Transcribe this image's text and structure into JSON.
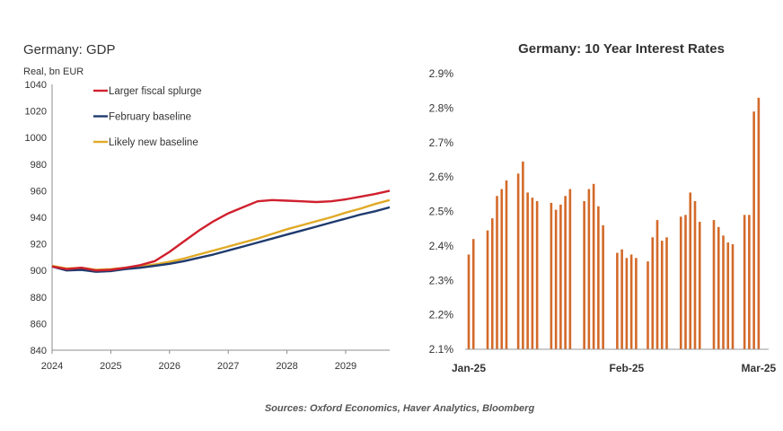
{
  "chart_data": [
    {
      "type": "line",
      "title": "Germany: GDP",
      "ylabel": "Real, bn EUR",
      "xlabel": "",
      "ylim": [
        840,
        1040
      ],
      "yticks": [
        840,
        860,
        880,
        900,
        920,
        940,
        960,
        980,
        1000,
        1020,
        1040
      ],
      "xlim": [
        2024,
        2029.75
      ],
      "xticks": [
        "2024",
        "2025",
        "2026",
        "2027",
        "2028",
        "2029"
      ],
      "legend_position": "top-left",
      "grid": false,
      "x": [
        2024.0,
        2024.25,
        2024.5,
        2024.75,
        2025.0,
        2025.25,
        2025.5,
        2025.75,
        2026.0,
        2026.25,
        2026.5,
        2026.75,
        2027.0,
        2027.25,
        2027.5,
        2027.75,
        2028.0,
        2028.25,
        2028.5,
        2028.75,
        2029.0,
        2029.25,
        2029.5,
        2029.75
      ],
      "series": [
        {
          "name": "Larger fiscal splurge",
          "color": "#d0202e",
          "values": [
            903,
            901,
            902,
            900,
            900.5,
            902,
            904,
            907,
            914,
            922,
            930,
            937,
            943,
            947.5,
            952,
            953,
            952.5,
            952,
            951.5,
            952,
            953.5,
            955.5,
            957.5,
            960
          ]
        },
        {
          "name": "February baseline",
          "color": "#1f3a6e",
          "values": [
            903,
            900,
            900.5,
            899,
            899.5,
            901,
            902,
            903.5,
            905,
            907,
            909.5,
            912,
            915,
            918,
            921,
            924,
            927,
            930,
            933,
            936,
            939,
            942,
            944.5,
            947.5
          ]
        },
        {
          "name": "Likely new baseline",
          "color": "#e0aa26",
          "values": [
            903.5,
            901.5,
            902,
            900.5,
            901,
            902,
            903,
            904.5,
            906.5,
            909,
            912,
            915,
            918,
            921,
            924,
            927.5,
            931,
            934,
            937,
            940,
            943.5,
            946.5,
            950,
            953
          ]
        }
      ]
    },
    {
      "type": "bar",
      "title": "Germany:  10 Year Interest Rates",
      "xlabel": "",
      "ylabel": "",
      "ylim": [
        2.1,
        2.9
      ],
      "yticks": [
        "2.1%",
        "2.2%",
        "2.3%",
        "2.4%",
        "2.5%",
        "2.6%",
        "2.7%",
        "2.8%",
        "2.9%"
      ],
      "xticks": [
        {
          "label": "Jan-25",
          "index": 0
        },
        {
          "label": "Feb-25",
          "index": 67
        },
        {
          "label": "Mar-25",
          "index": 123
        }
      ],
      "color": "#d36a2a",
      "grid": false,
      "positions": [
        0,
        2,
        8,
        10,
        12,
        14,
        16,
        21,
        23,
        25,
        27,
        29,
        35,
        37,
        39,
        41,
        43,
        49,
        51,
        53,
        55,
        57,
        63,
        65,
        67,
        69,
        71,
        76,
        78,
        80,
        82,
        84,
        90,
        92,
        94,
        96,
        98,
        104,
        106,
        108,
        110,
        112,
        117,
        119,
        121,
        123
      ],
      "values": [
        2.375,
        2.42,
        2.445,
        2.48,
        2.545,
        2.565,
        2.59,
        2.61,
        2.645,
        2.555,
        2.54,
        2.53,
        2.525,
        2.505,
        2.52,
        2.545,
        2.565,
        2.53,
        2.565,
        2.58,
        2.515,
        2.46,
        2.38,
        2.39,
        2.365,
        2.375,
        2.365,
        2.355,
        2.425,
        2.475,
        2.415,
        2.425,
        2.485,
        2.49,
        2.555,
        2.53,
        2.47,
        2.475,
        2.455,
        2.43,
        2.41,
        2.405,
        2.49,
        2.49,
        2.79,
        2.83
      ]
    }
  ],
  "footer": {
    "source": "Sources: Oxford Economics, Haver Analytics, Bloomberg"
  }
}
